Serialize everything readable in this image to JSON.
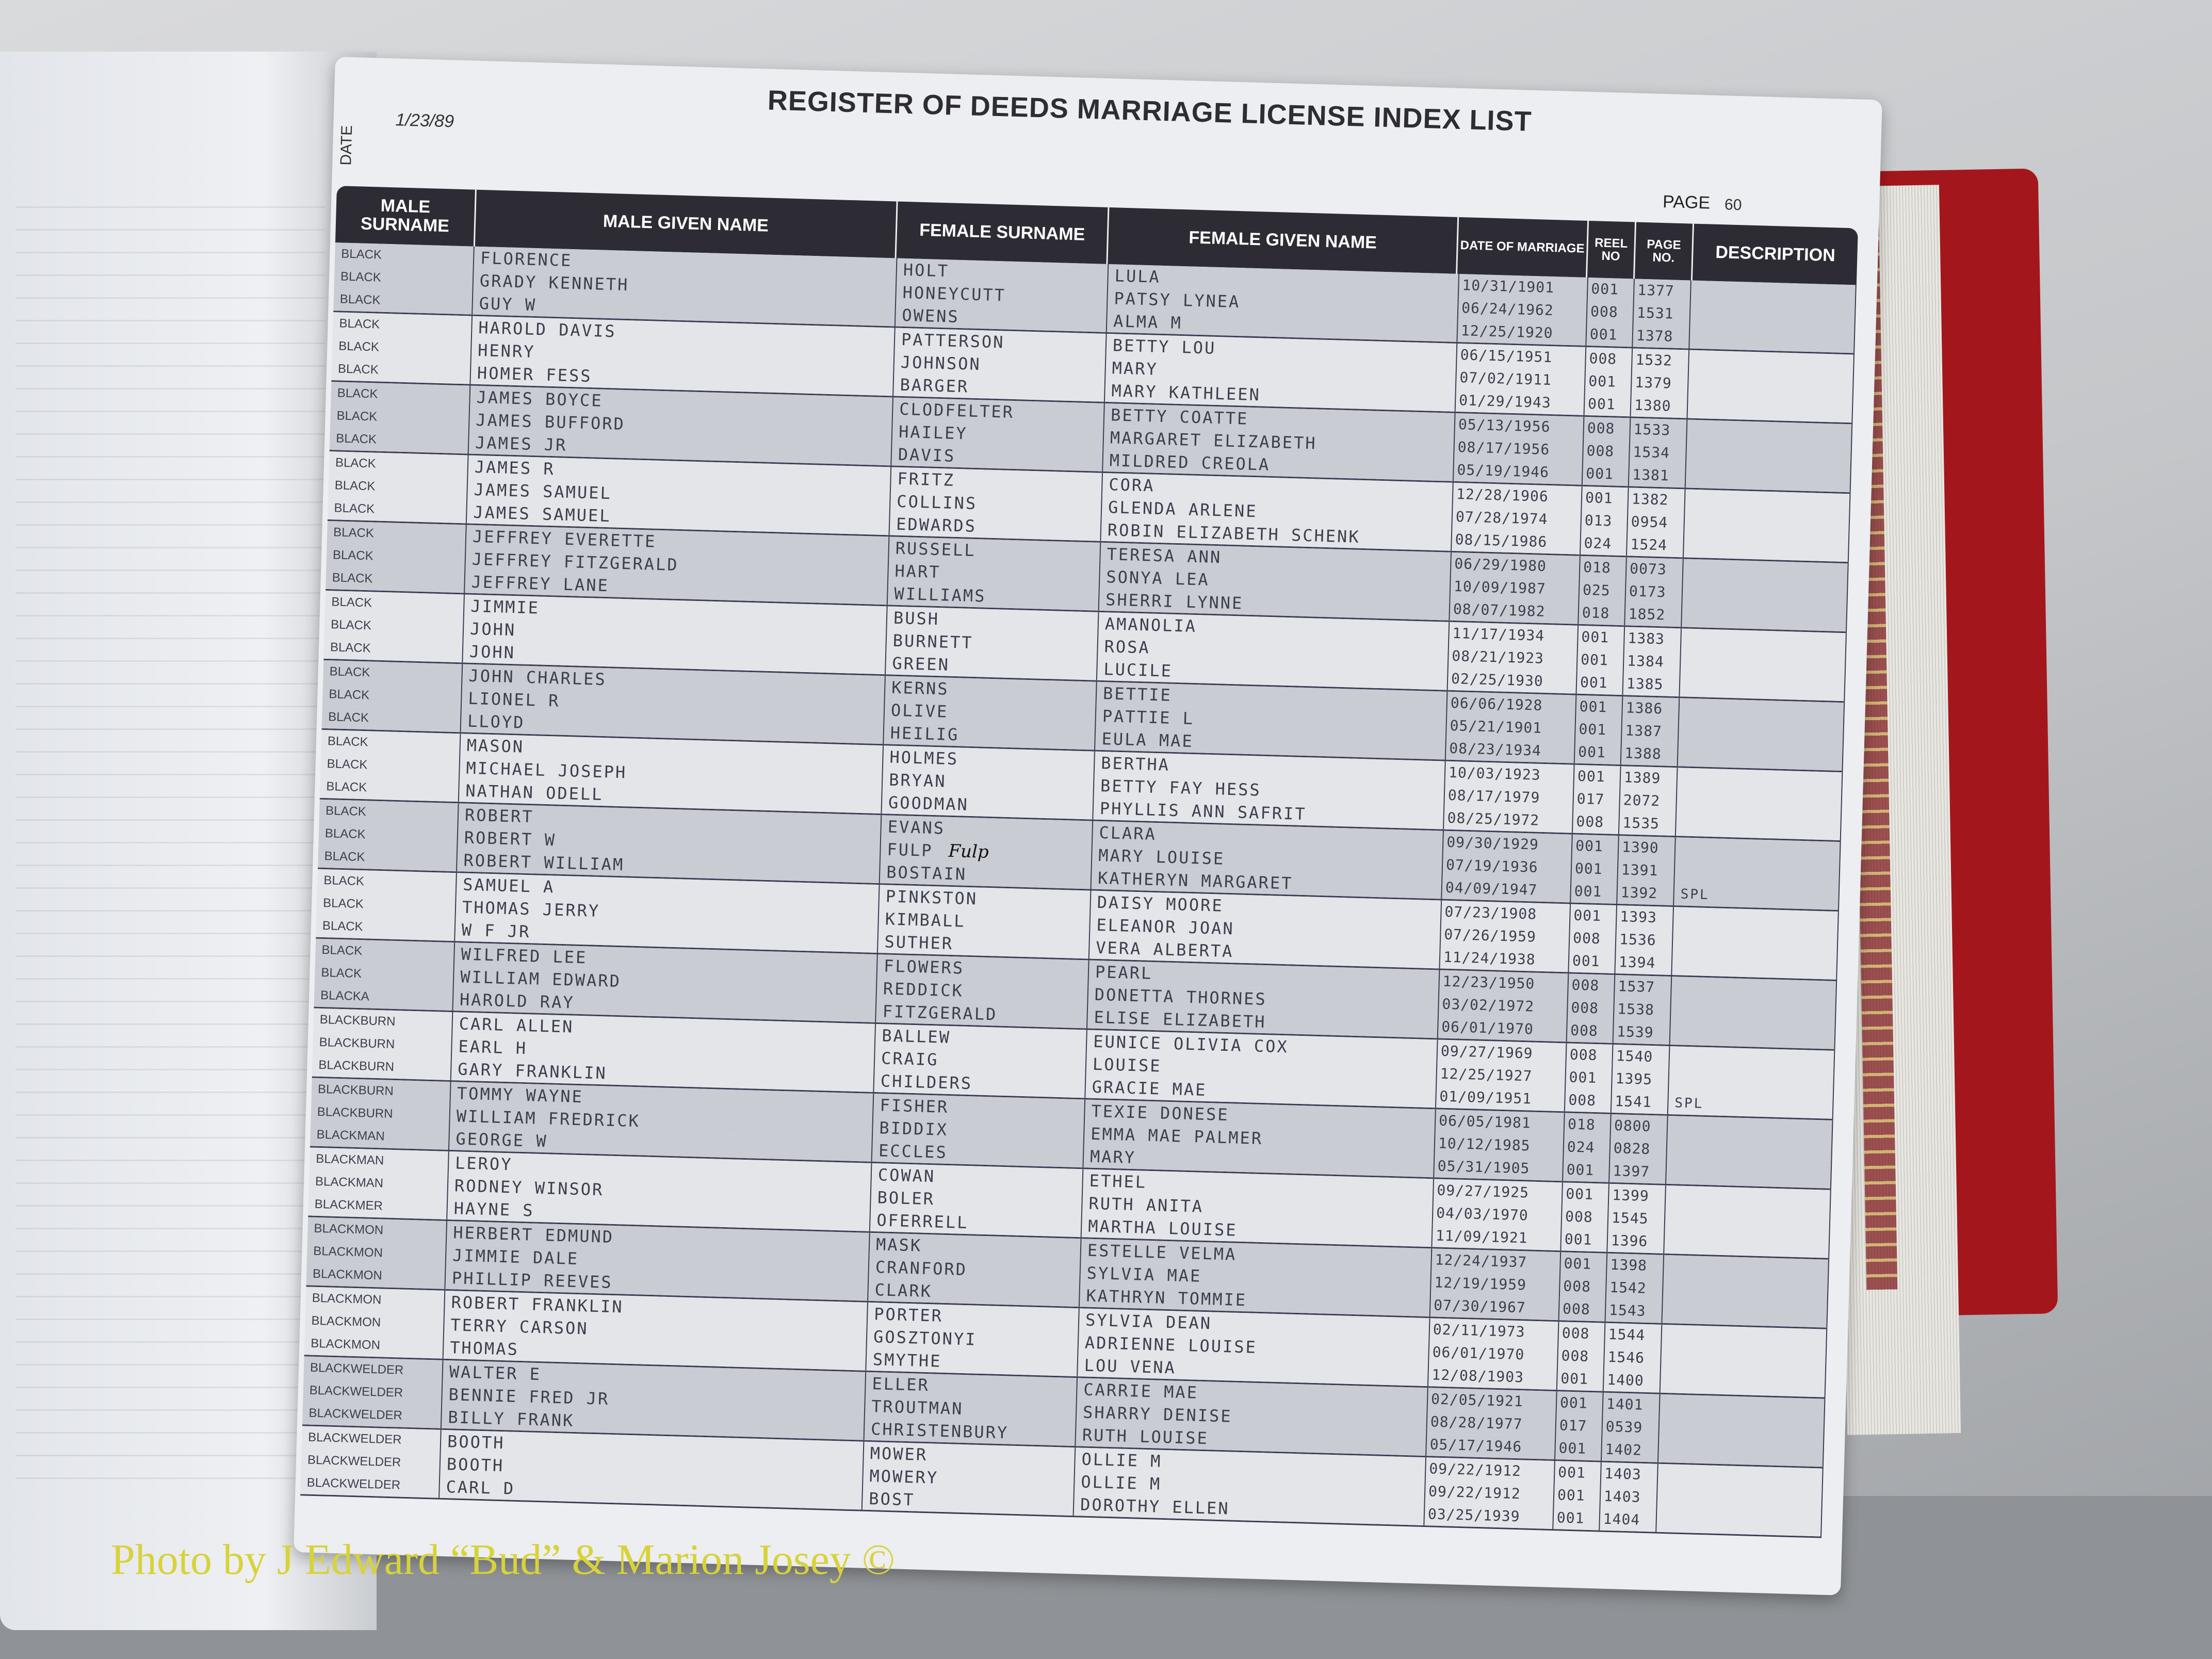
{
  "header": {
    "title": "REGISTER OF DEEDS MARRIAGE LICENSE INDEX LIST",
    "date_label": "DATE",
    "date_value": "1/23/89",
    "page_label": "PAGE",
    "page_value": "60"
  },
  "columns": [
    "MALE SURNAME",
    "MALE GIVEN NAME",
    "FEMALE SURNAME",
    "FEMALE GIVEN NAME",
    "DATE OF MARRIAGE",
    "REEL NO",
    "PAGE NO.",
    "DESCRIPTION"
  ],
  "rows": [
    {
      "ms": "BLACK",
      "mg": "FLORENCE",
      "fs": "HOLT",
      "fg": "LULA",
      "date": "10/31/1901",
      "reel": "001",
      "page": "1377",
      "desc": ""
    },
    {
      "ms": "BLACK",
      "mg": "GRADY KENNETH",
      "fs": "HONEYCUTT",
      "fg": "PATSY LYNEA",
      "date": "06/24/1962",
      "reel": "008",
      "page": "1531",
      "desc": ""
    },
    {
      "ms": "BLACK",
      "mg": "GUY W",
      "fs": "OWENS",
      "fg": "ALMA M",
      "date": "12/25/1920",
      "reel": "001",
      "page": "1378",
      "desc": ""
    },
    {
      "ms": "BLACK",
      "mg": "HAROLD DAVIS",
      "fs": "PATTERSON",
      "fg": "BETTY LOU",
      "date": "06/15/1951",
      "reel": "008",
      "page": "1532",
      "desc": ""
    },
    {
      "ms": "BLACK",
      "mg": "HENRY",
      "fs": "JOHNSON",
      "fg": "MARY",
      "date": "07/02/1911",
      "reel": "001",
      "page": "1379",
      "desc": ""
    },
    {
      "ms": "BLACK",
      "mg": "HOMER FESS",
      "fs": "BARGER",
      "fg": "MARY KATHLEEN",
      "date": "01/29/1943",
      "reel": "001",
      "page": "1380",
      "desc": ""
    },
    {
      "ms": "BLACK",
      "mg": "JAMES BOYCE",
      "fs": "CLODFELTER",
      "fg": "BETTY COATTE",
      "date": "05/13/1956",
      "reel": "008",
      "page": "1533",
      "desc": ""
    },
    {
      "ms": "BLACK",
      "mg": "JAMES BUFFORD",
      "fs": "HAILEY",
      "fg": "MARGARET ELIZABETH",
      "date": "08/17/1956",
      "reel": "008",
      "page": "1534",
      "desc": ""
    },
    {
      "ms": "BLACK",
      "mg": "JAMES JR",
      "fs": "DAVIS",
      "fg": "MILDRED CREOLA",
      "date": "05/19/1946",
      "reel": "001",
      "page": "1381",
      "desc": ""
    },
    {
      "ms": "BLACK",
      "mg": "JAMES R",
      "fs": "FRITZ",
      "fg": "CORA",
      "date": "12/28/1906",
      "reel": "001",
      "page": "1382",
      "desc": ""
    },
    {
      "ms": "BLACK",
      "mg": "JAMES SAMUEL",
      "fs": "COLLINS",
      "fg": "GLENDA ARLENE",
      "date": "07/28/1974",
      "reel": "013",
      "page": "0954",
      "desc": ""
    },
    {
      "ms": "BLACK",
      "mg": "JAMES SAMUEL",
      "fs": "EDWARDS",
      "fg": "ROBIN ELIZABETH SCHENK",
      "date": "08/15/1986",
      "reel": "024",
      "page": "1524",
      "desc": ""
    },
    {
      "ms": "BLACK",
      "mg": "JEFFREY EVERETTE",
      "fs": "RUSSELL",
      "fg": "TERESA ANN",
      "date": "06/29/1980",
      "reel": "018",
      "page": "0073",
      "desc": ""
    },
    {
      "ms": "BLACK",
      "mg": "JEFFREY FITZGERALD",
      "fs": "HART",
      "fg": "SONYA LEA",
      "date": "10/09/1987",
      "reel": "025",
      "page": "0173",
      "desc": ""
    },
    {
      "ms": "BLACK",
      "mg": "JEFFREY LANE",
      "fs": "WILLIAMS",
      "fg": "SHERRI LYNNE",
      "date": "08/07/1982",
      "reel": "018",
      "page": "1852",
      "desc": ""
    },
    {
      "ms": "BLACK",
      "mg": "JIMMIE",
      "fs": "BUSH",
      "fg": "AMANOLIA",
      "date": "11/17/1934",
      "reel": "001",
      "page": "1383",
      "desc": ""
    },
    {
      "ms": "BLACK",
      "mg": "JOHN",
      "fs": "BURNETT",
      "fg": "ROSA",
      "date": "08/21/1923",
      "reel": "001",
      "page": "1384",
      "desc": ""
    },
    {
      "ms": "BLACK",
      "mg": "JOHN",
      "fs": "GREEN",
      "fg": "LUCILE",
      "date": "02/25/1930",
      "reel": "001",
      "page": "1385",
      "desc": ""
    },
    {
      "ms": "BLACK",
      "mg": "JOHN CHARLES",
      "fs": "KERNS",
      "fg": "BETTIE",
      "date": "06/06/1928",
      "reel": "001",
      "page": "1386",
      "desc": ""
    },
    {
      "ms": "BLACK",
      "mg": "LIONEL R",
      "fs": "OLIVE",
      "fg": "PATTIE L",
      "date": "05/21/1901",
      "reel": "001",
      "page": "1387",
      "desc": ""
    },
    {
      "ms": "BLACK",
      "mg": "LLOYD",
      "fs": "HEILIG",
      "fg": "EULA MAE",
      "date": "08/23/1934",
      "reel": "001",
      "page": "1388",
      "desc": ""
    },
    {
      "ms": "BLACK",
      "mg": "MASON",
      "fs": "HOLMES",
      "fg": "BERTHA",
      "date": "10/03/1923",
      "reel": "001",
      "page": "1389",
      "desc": ""
    },
    {
      "ms": "BLACK",
      "mg": "MICHAEL JOSEPH",
      "fs": "BRYAN",
      "fg": "BETTY FAY HESS",
      "date": "08/17/1979",
      "reel": "017",
      "page": "2072",
      "desc": ""
    },
    {
      "ms": "BLACK",
      "mg": "NATHAN ODELL",
      "fs": "GOODMAN",
      "fg": "PHYLLIS ANN SAFRIT",
      "date": "08/25/1972",
      "reel": "008",
      "page": "1535",
      "desc": ""
    },
    {
      "ms": "BLACK",
      "mg": "ROBERT",
      "fs": "EVANS",
      "fg": "CLARA",
      "date": "09/30/1929",
      "reel": "001",
      "page": "1390",
      "desc": ""
    },
    {
      "ms": "BLACK",
      "mg": "ROBERT W",
      "fs": "FULP",
      "hand": "Fulp",
      "fg": "MARY LOUISE",
      "date": "07/19/1936",
      "reel": "001",
      "page": "1391",
      "desc": ""
    },
    {
      "ms": "BLACK",
      "mg": "ROBERT WILLIAM",
      "fs": "BOSTAIN",
      "fg": "KATHERYN MARGARET",
      "date": "04/09/1947",
      "reel": "001",
      "page": "1392",
      "desc": "SPL"
    },
    {
      "ms": "BLACK",
      "mg": "SAMUEL A",
      "fs": "PINKSTON",
      "fg": "DAISY MOORE",
      "date": "07/23/1908",
      "reel": "001",
      "page": "1393",
      "desc": ""
    },
    {
      "ms": "BLACK",
      "mg": "THOMAS JERRY",
      "fs": "KIMBALL",
      "fg": "ELEANOR JOAN",
      "date": "07/26/1959",
      "reel": "008",
      "page": "1536",
      "desc": ""
    },
    {
      "ms": "BLACK",
      "mg": "W F JR",
      "fs": "SUTHER",
      "fg": "VERA ALBERTA",
      "date": "11/24/1938",
      "reel": "001",
      "page": "1394",
      "desc": ""
    },
    {
      "ms": "BLACK",
      "mg": "WILFRED LEE",
      "fs": "FLOWERS",
      "fg": "PEARL",
      "date": "12/23/1950",
      "reel": "008",
      "page": "1537",
      "desc": ""
    },
    {
      "ms": "BLACK",
      "mg": "WILLIAM EDWARD",
      "fs": "REDDICK",
      "fg": "DONETTA THORNES",
      "date": "03/02/1972",
      "reel": "008",
      "page": "1538",
      "desc": ""
    },
    {
      "ms": "BLACKA",
      "mg": "HAROLD RAY",
      "fs": "FITZGERALD",
      "fg": "ELISE ELIZABETH",
      "date": "06/01/1970",
      "reel": "008",
      "page": "1539",
      "desc": ""
    },
    {
      "ms": "BLACKBURN",
      "mg": "CARL ALLEN",
      "fs": "BALLEW",
      "fg": "EUNICE OLIVIA COX",
      "date": "09/27/1969",
      "reel": "008",
      "page": "1540",
      "desc": ""
    },
    {
      "ms": "BLACKBURN",
      "mg": "EARL H",
      "fs": "CRAIG",
      "fg": "LOUISE",
      "date": "12/25/1927",
      "reel": "001",
      "page": "1395",
      "desc": ""
    },
    {
      "ms": "BLACKBURN",
      "mg": "GARY FRANKLIN",
      "fs": "CHILDERS",
      "fg": "GRACIE MAE",
      "date": "01/09/1951",
      "reel": "008",
      "page": "1541",
      "desc": "SPL"
    },
    {
      "ms": "BLACKBURN",
      "mg": "TOMMY WAYNE",
      "fs": "FISHER",
      "fg": "TEXIE DONESE",
      "date": "06/05/1981",
      "reel": "018",
      "page": "0800",
      "desc": ""
    },
    {
      "ms": "BLACKBURN",
      "mg": "WILLIAM FREDRICK",
      "fs": "BIDDIX",
      "fg": "EMMA MAE PALMER",
      "date": "10/12/1985",
      "reel": "024",
      "page": "0828",
      "desc": ""
    },
    {
      "ms": "BLACKMAN",
      "mg": "GEORGE W",
      "fs": "ECCLES",
      "fg": "MARY",
      "date": "05/31/1905",
      "reel": "001",
      "page": "1397",
      "desc": ""
    },
    {
      "ms": "BLACKMAN",
      "mg": "LEROY",
      "fs": "COWAN",
      "fg": "ETHEL",
      "date": "09/27/1925",
      "reel": "001",
      "page": "1399",
      "desc": ""
    },
    {
      "ms": "BLACKMAN",
      "mg": "RODNEY WINSOR",
      "fs": "BOLER",
      "fg": "RUTH ANITA",
      "date": "04/03/1970",
      "reel": "008",
      "page": "1545",
      "desc": ""
    },
    {
      "ms": "BLACKMER",
      "mg": "HAYNE S",
      "fs": "OFERRELL",
      "fg": "MARTHA LOUISE",
      "date": "11/09/1921",
      "reel": "001",
      "page": "1396",
      "desc": ""
    },
    {
      "ms": "BLACKMON",
      "mg": "HERBERT EDMUND",
      "fs": "MASK",
      "fg": "ESTELLE VELMA",
      "date": "12/24/1937",
      "reel": "001",
      "page": "1398",
      "desc": ""
    },
    {
      "ms": "BLACKMON",
      "mg": "JIMMIE DALE",
      "fs": "CRANFORD",
      "fg": "SYLVIA MAE",
      "date": "12/19/1959",
      "reel": "008",
      "page": "1542",
      "desc": ""
    },
    {
      "ms": "BLACKMON",
      "mg": "PHILLIP REEVES",
      "fs": "CLARK",
      "fg": "KATHRYN TOMMIE",
      "date": "07/30/1967",
      "reel": "008",
      "page": "1543",
      "desc": ""
    },
    {
      "ms": "BLACKMON",
      "mg": "ROBERT FRANKLIN",
      "fs": "PORTER",
      "fg": "SYLVIA DEAN",
      "date": "02/11/1973",
      "reel": "008",
      "page": "1544",
      "desc": ""
    },
    {
      "ms": "BLACKMON",
      "mg": "TERRY CARSON",
      "fs": "GOSZTONYI",
      "fg": "ADRIENNE LOUISE",
      "date": "06/01/1970",
      "reel": "008",
      "page": "1546",
      "desc": ""
    },
    {
      "ms": "BLACKMON",
      "mg": "THOMAS",
      "fs": "SMYTHE",
      "fg": "LOU VENA",
      "date": "12/08/1903",
      "reel": "001",
      "page": "1400",
      "desc": ""
    },
    {
      "ms": "BLACKWELDER",
      "mg": "WALTER E",
      "fs": "ELLER",
      "fg": "CARRIE MAE",
      "date": "02/05/1921",
      "reel": "001",
      "page": "1401",
      "desc": ""
    },
    {
      "ms": "BLACKWELDER",
      "mg": "BENNIE FRED JR",
      "fs": "TROUTMAN",
      "fg": "SHARRY DENISE",
      "date": "08/28/1977",
      "reel": "017",
      "page": "0539",
      "desc": ""
    },
    {
      "ms": "BLACKWELDER",
      "mg": "BILLY FRANK",
      "fs": "CHRISTENBURY",
      "fg": "RUTH LOUISE",
      "date": "05/17/1946",
      "reel": "001",
      "page": "1402",
      "desc": ""
    },
    {
      "ms": "BLACKWELDER",
      "mg": "BOOTH",
      "fs": "MOWER",
      "fg": "OLLIE M",
      "date": "09/22/1912",
      "reel": "001",
      "page": "1403",
      "desc": ""
    },
    {
      "ms": "BLACKWELDER",
      "mg": "BOOTH",
      "fs": "MOWERY",
      "fg": "OLLIE M",
      "date": "09/22/1912",
      "reel": "001",
      "page": "1403",
      "desc": ""
    },
    {
      "ms": "BLACKWELDER",
      "mg": "CARL D",
      "fs": "BOST",
      "fg": "DOROTHY ELLEN",
      "date": "03/25/1939",
      "reel": "001",
      "page": "1404",
      "desc": ""
    }
  ],
  "watermark": "Photo by J Edward “Bud” & Marion Josey ©",
  "colors": {
    "header_bg": "#2d2c35",
    "row_shade": "#c9ccd2",
    "row_light": "#e3e5e9",
    "binder": "#a3171c",
    "watermark": "#d8d23a"
  }
}
